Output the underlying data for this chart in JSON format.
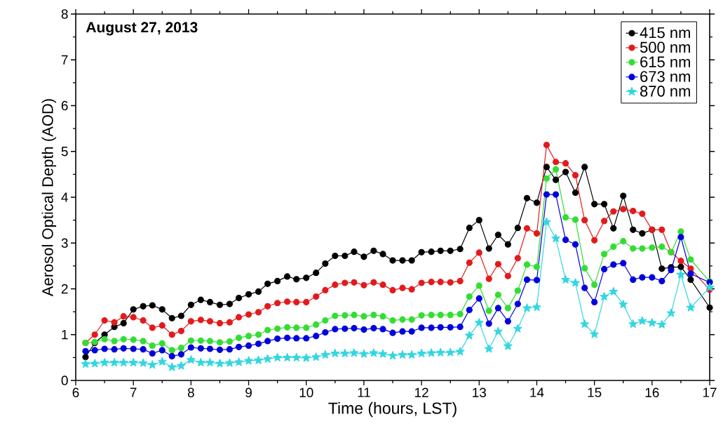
{
  "chart_data": {
    "type": "line",
    "xlabel": "Time (hours, LST)",
    "ylabel": "Aerosol Optical Depth (AOD)",
    "annotations": [
      "August 27, 2013"
    ],
    "xlim": [
      6,
      17
    ],
    "ylim": [
      0,
      8
    ],
    "xticks": [
      6,
      7,
      8,
      9,
      10,
      11,
      12,
      13,
      14,
      15,
      16,
      17
    ],
    "yticks": [
      0,
      1,
      2,
      3,
      4,
      5,
      6,
      7,
      8
    ],
    "legend": "top right",
    "grid": false,
    "line_style": "solid",
    "x": [
      6.17,
      6.33,
      6.5,
      6.67,
      6.83,
      7,
      7.17,
      7.33,
      7.5,
      7.67,
      7.83,
      8,
      8.17,
      8.33,
      8.5,
      8.67,
      8.83,
      9,
      9.17,
      9.33,
      9.5,
      9.67,
      9.83,
      10,
      10.17,
      10.33,
      10.5,
      10.67,
      10.83,
      11,
      11.17,
      11.33,
      11.5,
      11.67,
      11.83,
      12,
      12.17,
      12.33,
      12.5,
      12.67,
      12.83,
      13,
      13.17,
      13.33,
      13.5,
      13.67,
      13.83,
      14,
      14.17,
      14.33,
      14.5,
      14.67,
      14.83,
      15,
      15.17,
      15.33,
      15.5,
      15.67,
      15.83,
      16,
      16.17,
      16.33,
      16.5,
      16.67,
      17
    ],
    "series": [
      {
        "name": "415 nm",
        "color": "#000000",
        "marker": "circle",
        "values": [
          0.51,
          0.82,
          1.0,
          1.17,
          1.25,
          1.55,
          1.62,
          1.64,
          1.55,
          1.36,
          1.41,
          1.65,
          1.76,
          1.71,
          1.65,
          1.67,
          1.8,
          1.88,
          1.94,
          2.11,
          2.17,
          2.27,
          2.21,
          2.24,
          2.35,
          2.55,
          2.72,
          2.72,
          2.81,
          2.7,
          2.83,
          2.76,
          2.62,
          2.62,
          2.62,
          2.8,
          2.81,
          2.83,
          2.83,
          2.87,
          3.33,
          3.5,
          2.88,
          3.18,
          2.97,
          3.33,
          3.98,
          3.88,
          4.66,
          4.38,
          4.55,
          4.1,
          4.66,
          3.85,
          3.85,
          3.32,
          4.03,
          3.29,
          3.21,
          3.29,
          2.44,
          2.47,
          2.48,
          2.2,
          1.59
        ]
      },
      {
        "name": "500 nm",
        "color": "#e31a1c",
        "marker": "circle",
        "values": [
          0.82,
          1.0,
          1.31,
          1.27,
          1.4,
          1.38,
          1.31,
          1.15,
          1.2,
          1.0,
          1.08,
          1.29,
          1.32,
          1.29,
          1.25,
          1.27,
          1.38,
          1.44,
          1.49,
          1.62,
          1.69,
          1.72,
          1.71,
          1.71,
          1.83,
          1.97,
          2.09,
          2.13,
          2.14,
          2.08,
          2.14,
          2.09,
          1.97,
          2.02,
          1.99,
          2.13,
          2.15,
          2.15,
          2.14,
          2.17,
          2.57,
          2.79,
          2.22,
          2.54,
          2.28,
          2.67,
          3.32,
          3.21,
          5.14,
          4.77,
          4.74,
          4.48,
          3.5,
          3.06,
          3.48,
          3.69,
          3.74,
          3.7,
          3.64,
          3.29,
          3.29,
          2.8,
          2.61,
          2.44,
          1.98
        ]
      },
      {
        "name": "615 nm",
        "color": "#33dd33",
        "marker": "circle",
        "values": [
          0.82,
          0.84,
          0.9,
          0.86,
          0.9,
          0.89,
          0.86,
          0.76,
          0.81,
          0.66,
          0.71,
          0.87,
          0.87,
          0.86,
          0.83,
          0.85,
          0.93,
          0.97,
          1.0,
          1.1,
          1.13,
          1.16,
          1.15,
          1.15,
          1.22,
          1.31,
          1.41,
          1.42,
          1.43,
          1.4,
          1.43,
          1.4,
          1.31,
          1.33,
          1.33,
          1.42,
          1.43,
          1.43,
          1.43,
          1.45,
          1.83,
          2.07,
          1.52,
          1.87,
          1.58,
          1.96,
          2.53,
          2.48,
          4.41,
          4.61,
          3.56,
          3.51,
          2.45,
          2.09,
          2.76,
          2.92,
          3.04,
          2.88,
          2.88,
          2.9,
          2.92,
          2.8,
          3.25,
          2.64,
          2.16
        ]
      },
      {
        "name": "673 nm",
        "color": "#0000dd",
        "marker": "circle",
        "values": [
          0.64,
          0.66,
          0.69,
          0.68,
          0.7,
          0.69,
          0.68,
          0.59,
          0.66,
          0.53,
          0.57,
          0.72,
          0.7,
          0.69,
          0.67,
          0.68,
          0.73,
          0.76,
          0.8,
          0.86,
          0.91,
          0.93,
          0.92,
          0.92,
          0.97,
          1.05,
          1.12,
          1.13,
          1.14,
          1.11,
          1.14,
          1.12,
          1.04,
          1.07,
          1.07,
          1.15,
          1.15,
          1.16,
          1.16,
          1.17,
          1.54,
          1.79,
          1.24,
          1.58,
          1.29,
          1.67,
          2.2,
          2.19,
          4.06,
          4.06,
          3.07,
          2.97,
          2.02,
          1.71,
          2.43,
          2.53,
          2.56,
          2.2,
          2.25,
          2.25,
          2.17,
          2.41,
          3.13,
          2.33,
          2.14
        ]
      },
      {
        "name": "870 nm",
        "color": "#33d6e0",
        "marker": "star",
        "values": [
          0.36,
          0.37,
          0.39,
          0.39,
          0.39,
          0.39,
          0.38,
          0.34,
          0.41,
          0.29,
          0.32,
          0.45,
          0.39,
          0.39,
          0.37,
          0.38,
          0.4,
          0.43,
          0.44,
          0.47,
          0.5,
          0.5,
          0.5,
          0.49,
          0.51,
          0.56,
          0.59,
          0.59,
          0.6,
          0.58,
          0.6,
          0.58,
          0.54,
          0.56,
          0.56,
          0.59,
          0.6,
          0.61,
          0.61,
          0.63,
          0.98,
          1.26,
          0.69,
          1.07,
          0.75,
          1.13,
          1.58,
          1.6,
          3.46,
          3.1,
          2.2,
          2.13,
          1.23,
          1.01,
          1.83,
          1.94,
          1.66,
          1.23,
          1.3,
          1.26,
          1.22,
          1.47,
          2.31,
          1.59,
          2.03
        ]
      }
    ]
  }
}
